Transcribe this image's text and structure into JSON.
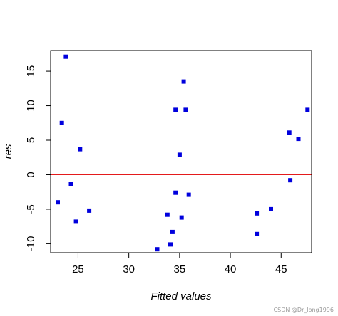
{
  "chart_data": {
    "type": "scatter",
    "xlabel": "Fitted values",
    "ylabel": "res",
    "xlim": [
      22.3,
      48.0
    ],
    "ylim": [
      -11.3,
      18.0
    ],
    "xticks": [
      25,
      30,
      35,
      40,
      45
    ],
    "yticks": [
      -10,
      -5,
      0,
      5,
      10,
      15
    ],
    "reference_line": {
      "y": 0,
      "color": "#e41a1c"
    },
    "marker_color": "#0000dd",
    "points": [
      {
        "x": 23.0,
        "y": -4.0
      },
      {
        "x": 23.4,
        "y": 7.5
      },
      {
        "x": 23.8,
        "y": 17.1
      },
      {
        "x": 24.3,
        "y": -1.4
      },
      {
        "x": 24.8,
        "y": -6.8
      },
      {
        "x": 25.2,
        "y": 3.7
      },
      {
        "x": 26.1,
        "y": -5.2
      },
      {
        "x": 32.8,
        "y": -10.8
      },
      {
        "x": 33.8,
        "y": -5.8
      },
      {
        "x": 34.1,
        "y": -10.1
      },
      {
        "x": 34.3,
        "y": -8.3
      },
      {
        "x": 34.6,
        "y": 9.4
      },
      {
        "x": 34.6,
        "y": -2.6
      },
      {
        "x": 35.0,
        "y": 2.9
      },
      {
        "x": 35.2,
        "y": -6.2
      },
      {
        "x": 35.4,
        "y": 13.5
      },
      {
        "x": 35.6,
        "y": 9.4
      },
      {
        "x": 35.9,
        "y": -2.9
      },
      {
        "x": 42.6,
        "y": -5.6
      },
      {
        "x": 42.6,
        "y": -8.6
      },
      {
        "x": 44.0,
        "y": -5.0
      },
      {
        "x": 45.8,
        "y": 6.1
      },
      {
        "x": 45.9,
        "y": -0.8
      },
      {
        "x": 46.7,
        "y": 5.2
      },
      {
        "x": 47.6,
        "y": 9.4
      }
    ]
  },
  "watermark": "CSDN @Dr_long1996"
}
